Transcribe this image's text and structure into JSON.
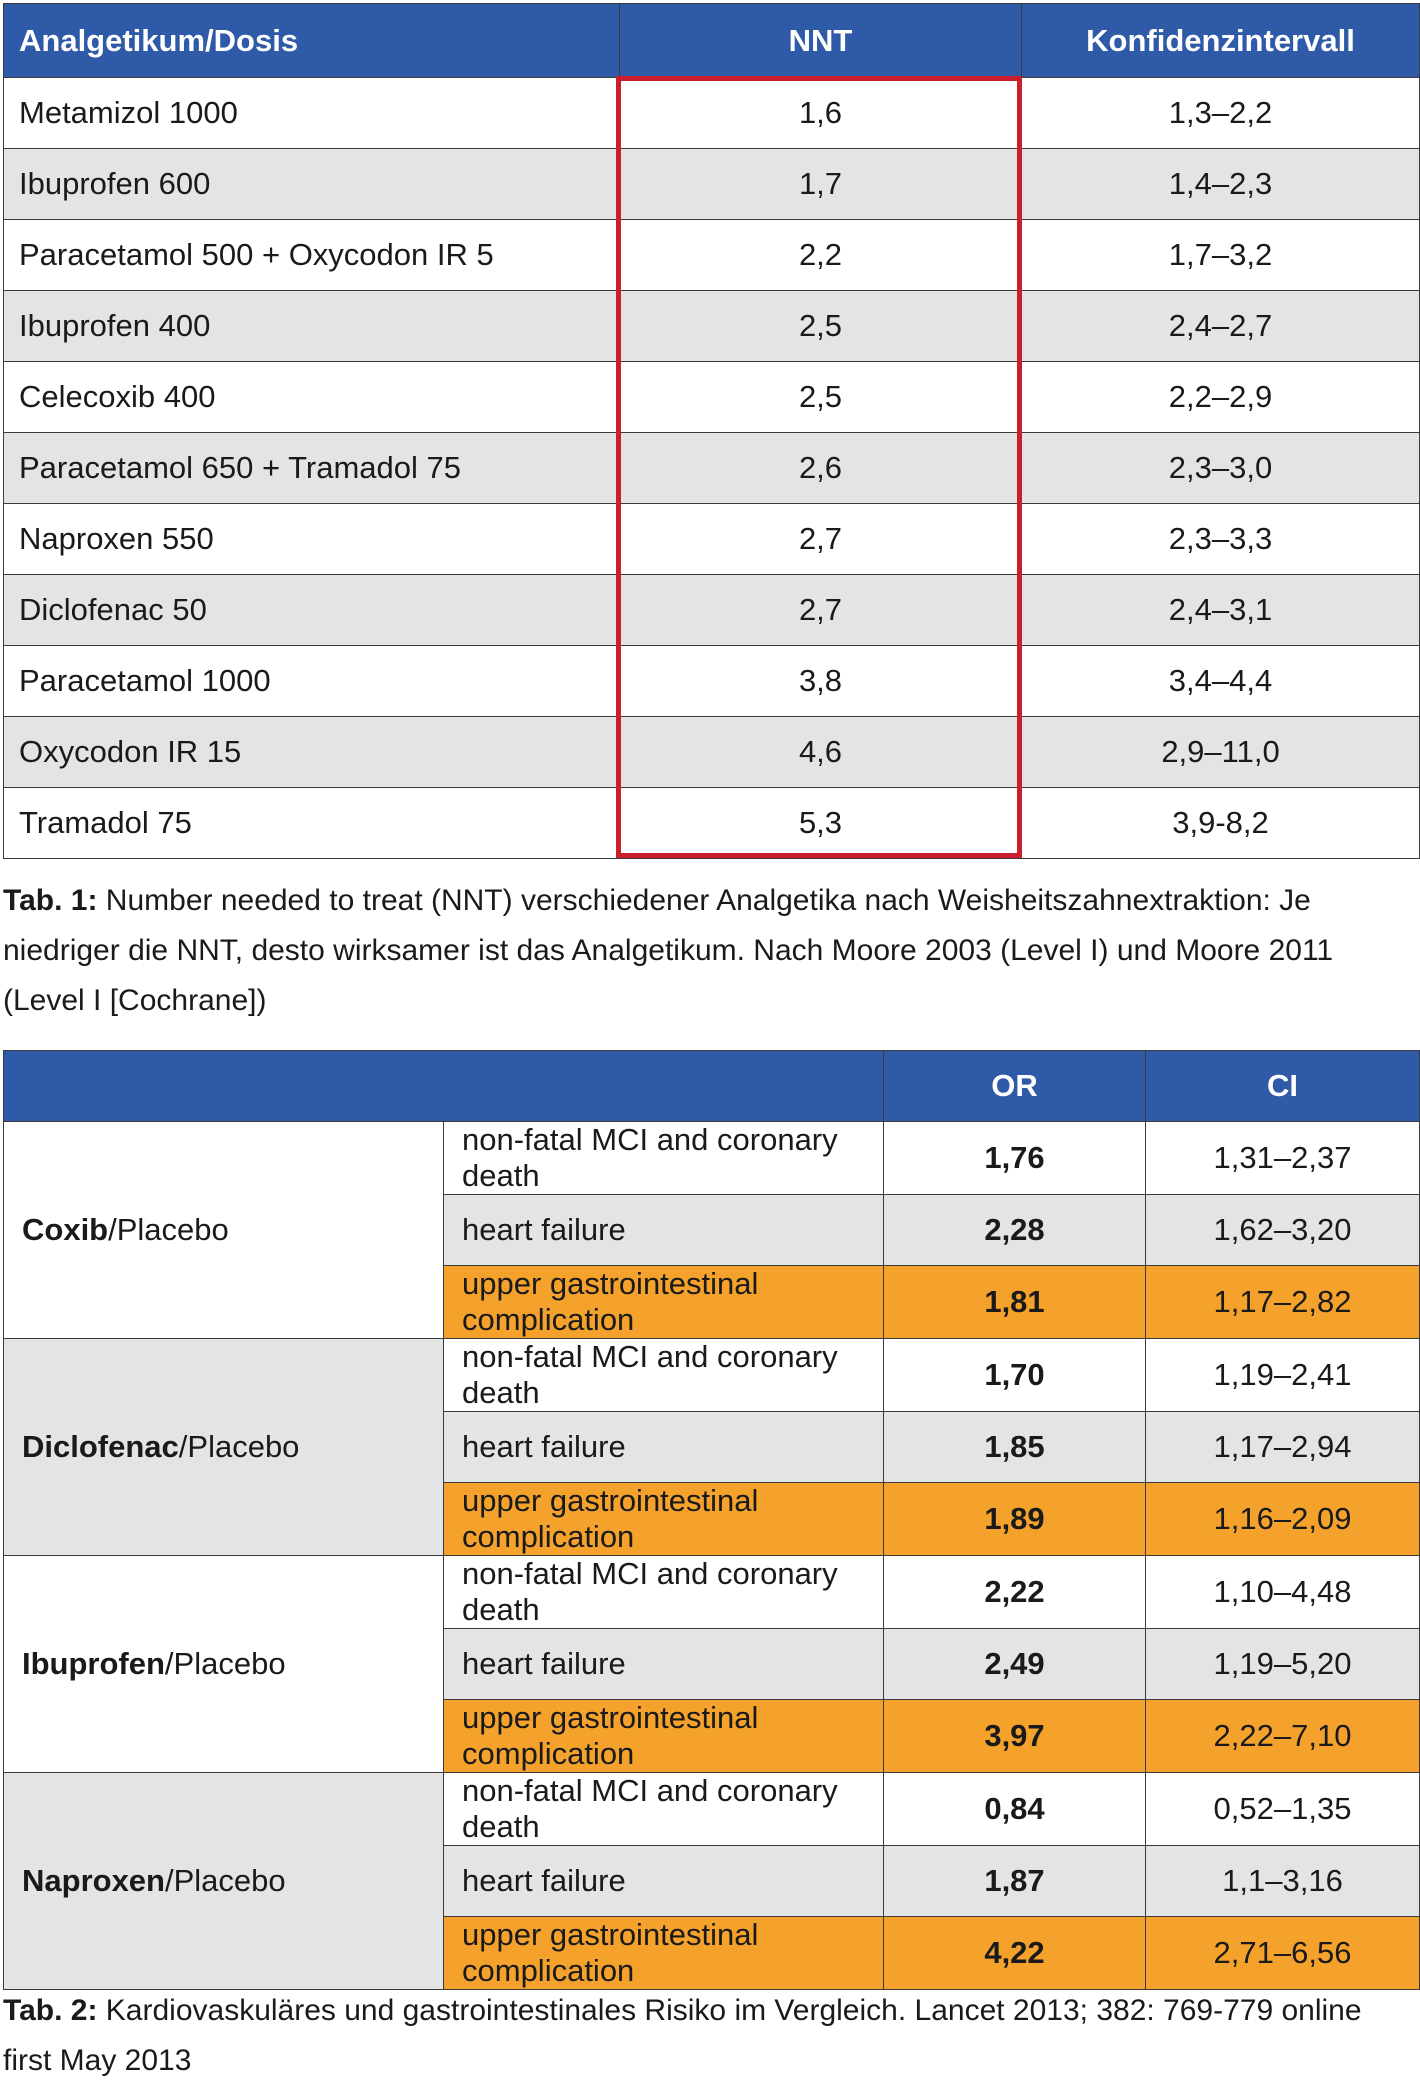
{
  "table1": {
    "headers": [
      "Analgetikum/Dosis",
      "NNT",
      "Konfidenzintervall"
    ],
    "rows": [
      {
        "drug": "Metamizol 1000",
        "nnt": "1,6",
        "ci": "1,3–2,2"
      },
      {
        "drug": "Ibuprofen 600",
        "nnt": "1,7",
        "ci": "1,4–2,3"
      },
      {
        "drug": "Paracetamol 500 + Oxycodon IR 5",
        "nnt": "2,2",
        "ci": "1,7–3,2"
      },
      {
        "drug": "Ibuprofen 400",
        "nnt": "2,5",
        "ci": "2,4–2,7"
      },
      {
        "drug": "Celecoxib 400",
        "nnt": "2,5",
        "ci": "2,2–2,9"
      },
      {
        "drug": "Paracetamol 650 + Tramadol 75",
        "nnt": "2,6",
        "ci": "2,3–3,0"
      },
      {
        "drug": "Naproxen 550",
        "nnt": "2,7",
        "ci": "2,3–3,3"
      },
      {
        "drug": "Diclofenac 50",
        "nnt": "2,7",
        "ci": "2,4–3,1"
      },
      {
        "drug": "Paracetamol 1000",
        "nnt": "3,8",
        "ci": "3,4–4,4"
      },
      {
        "drug": "Oxycodon IR 15",
        "nnt": "4,6",
        "ci": "2,9–11,0"
      },
      {
        "drug": "Tramadol 75",
        "nnt": "5,3",
        "ci": "3,9-8,2"
      }
    ],
    "caption_label": "Tab. 1:",
    "caption_text": " Number needed to treat (NNT)  verschiedener Analgetika nach Weisheitszahnextraktion: Je niedriger die NNT, desto wirksamer ist das Analgetikum. Nach Moore 2003 (Level I) und Moore 2011 (Level I [Cochrane])",
    "highlight_color": "#cc1f2d"
  },
  "table2": {
    "headers": [
      "",
      "OR",
      "CI"
    ],
    "groups": [
      {
        "drug": "Coxib",
        "suffix": "/Placebo",
        "rows": [
          {
            "endpoint": "non-fatal MCI and coronary death",
            "or": "1,76",
            "ci": "1,31–2,37"
          },
          {
            "endpoint": "heart failure",
            "or": "2,28",
            "ci": "1,62–3,20"
          },
          {
            "endpoint": "upper gastrointestinal complication",
            "or": "1,81",
            "ci": "1,17–2,82"
          }
        ]
      },
      {
        "drug": "Diclofenac",
        "suffix": "/Placebo",
        "rows": [
          {
            "endpoint": "non-fatal MCI and coronary death",
            "or": "1,70",
            "ci": "1,19–2,41"
          },
          {
            "endpoint": "heart failure",
            "or": "1,85",
            "ci": "1,17–2,94"
          },
          {
            "endpoint": "upper gastrointestinal complication",
            "or": "1,89",
            "ci": "1,16–2,09"
          }
        ]
      },
      {
        "drug": "Ibuprofen",
        "suffix": "/Placebo",
        "rows": [
          {
            "endpoint": "non-fatal MCI and coronary death",
            "or": "2,22",
            "ci": "1,10–4,48"
          },
          {
            "endpoint": "heart failure",
            "or": "2,49",
            "ci": "1,19–5,20"
          },
          {
            "endpoint": "upper gastrointestinal complication",
            "or": "3,97",
            "ci": "2,22–7,10"
          }
        ]
      },
      {
        "drug": "Naproxen",
        "suffix": "/Placebo",
        "rows": [
          {
            "endpoint": "non-fatal MCI and coronary death",
            "or": "0,84",
            "ci": "0,52–1,35"
          },
          {
            "endpoint": "heart failure",
            "or": "1,87",
            "ci": "1,1–3,16"
          },
          {
            "endpoint": "upper gastrointestinal complication",
            "or": "4,22",
            "ci": "2,71–6,56"
          }
        ]
      }
    ],
    "caption_label": "Tab. 2:",
    "caption_text": " Kardiovaskuläres und gastrointestinales Risiko im Vergleich. Lancet  2013; 382: 769-779 online first May 2013",
    "header_color": "#2e5aa7",
    "highlight_row_color": "#f4a22c"
  }
}
